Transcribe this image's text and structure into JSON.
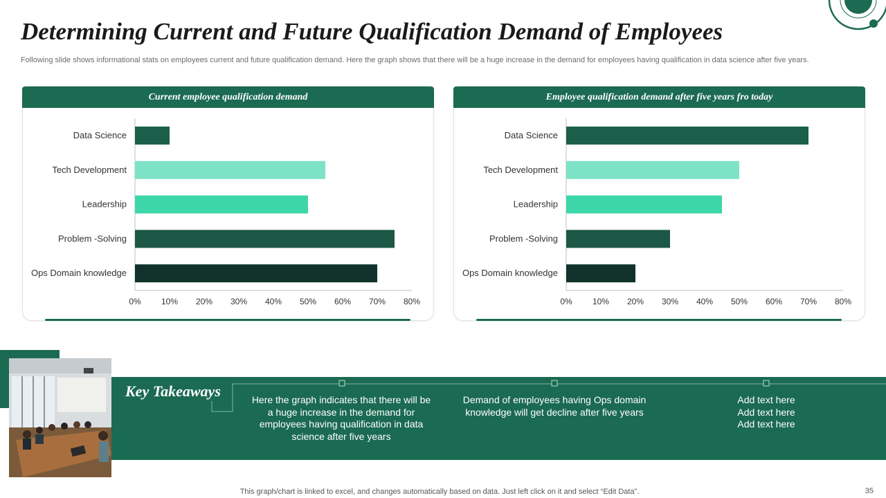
{
  "slide": {
    "title": "Determining Current and Future Qualification Demand of Employees",
    "subtitle": "Following slide shows informational stats on employees current and future qualification demand. Here the graph shows that there will be a huge increase in the demand for employees having qualification in data science after five years.",
    "footer_note": "This graph/chart is linked to excel, and changes automatically based on data. Just left click on it and select “Edit Data”.",
    "page_number": "35"
  },
  "colors": {
    "brand": "#1b6a52",
    "bar_dark": "#1b5e49",
    "bar_light": "#7ee3c6",
    "bar_mid": "#3dd6a8",
    "bar_deep": "#1d5745",
    "bar_darkest": "#10322a"
  },
  "chart_data": [
    {
      "type": "bar",
      "orientation": "horizontal",
      "title": "Current employee qualification demand",
      "categories": [
        "Data Science",
        "Tech Development",
        "Leadership",
        "Problem -Solving",
        "Ops Domain knowledge"
      ],
      "values": [
        10,
        55,
        50,
        75,
        70
      ],
      "unit": "%",
      "xlim": [
        0,
        80
      ],
      "xticks": [
        "0%",
        "10%",
        "20%",
        "30%",
        "40%",
        "50%",
        "60%",
        "70%",
        "80%"
      ],
      "grid": false
    },
    {
      "type": "bar",
      "orientation": "horizontal",
      "title": "Employee qualification demand after five years fro today",
      "categories": [
        "Data Science",
        "Tech Development",
        "Leadership",
        "Problem -Solving",
        "Ops Domain knowledge"
      ],
      "values": [
        70,
        50,
        45,
        30,
        20
      ],
      "unit": "%",
      "xlim": [
        0,
        80
      ],
      "xticks": [
        "0%",
        "10%",
        "20%",
        "30%",
        "40%",
        "50%",
        "60%",
        "70%",
        "80%"
      ],
      "grid": false
    }
  ],
  "takeaways": {
    "title": "Key Takeaways",
    "items": [
      "Here the graph indicates that there will be a huge increase in the demand for employees having qualification in data science after five years",
      "Demand of employees having Ops domain knowledge will get decline after five years",
      "Add text here\nAdd text here\nAdd text here"
    ]
  }
}
